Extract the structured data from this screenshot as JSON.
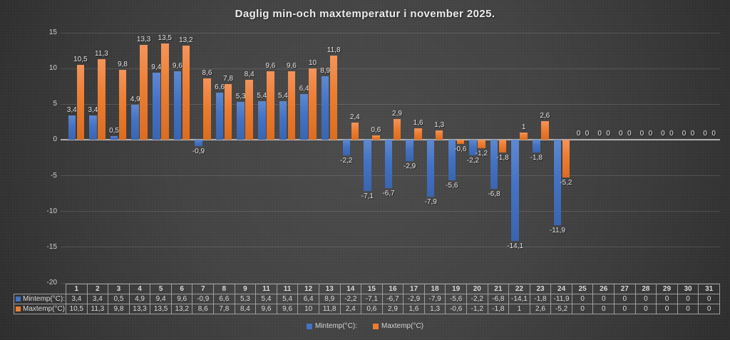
{
  "chart_data": {
    "type": "bar",
    "title": "Daglig min-och maxtemperatur i november 2025.",
    "categories": [
      "1",
      "2",
      "3",
      "4",
      "5",
      "6",
      "7",
      "8",
      "9",
      "11",
      "11",
      "12",
      "13",
      "14",
      "15",
      "16",
      "17",
      "18",
      "19",
      "20",
      "21",
      "22",
      "23",
      "24",
      "25",
      "26",
      "27",
      "28",
      "29",
      "30",
      "31"
    ],
    "series": [
      {
        "name": "Mintemp(°C):",
        "color": "#4472C4",
        "values": [
          3.4,
          3.4,
          0.5,
          4.9,
          9.4,
          9.6,
          -0.9,
          6.6,
          5.3,
          5.4,
          5.4,
          6.4,
          8.9,
          -2.2,
          -7.1,
          -6.7,
          -2.9,
          -7.9,
          -5.6,
          -2.2,
          -6.8,
          -14.1,
          -1.8,
          -11.9,
          0,
          0,
          0,
          0,
          0,
          0,
          0
        ],
        "labels": [
          "3,4",
          "3,4",
          "0,5",
          "4,9",
          "9,4",
          "9,6",
          "-0,9",
          "6,6",
          "5,3",
          "5,4",
          "5,4",
          "6,4",
          "8,9",
          "-2,2",
          "-7,1",
          "-6,7",
          "-2,9",
          "-7,9",
          "-5,6",
          "-2,2",
          "-6,8",
          "-14,1",
          "-1,8",
          "-11,9",
          "0",
          "0",
          "0",
          "0",
          "0",
          "0",
          "0"
        ]
      },
      {
        "name": "Maxtemp(°C)",
        "color": "#ED7D31",
        "values": [
          10.5,
          11.3,
          9.8,
          13.3,
          13.5,
          13.2,
          8.6,
          7.8,
          8.4,
          9.6,
          9.6,
          10,
          11.8,
          2.4,
          0.6,
          2.9,
          1.6,
          1.3,
          -0.6,
          -1.2,
          -1.8,
          1,
          2.6,
          -5.2,
          0,
          0,
          0,
          0,
          0,
          0,
          0
        ],
        "labels": [
          "10,5",
          "11,3",
          "9,8",
          "13,3",
          "13,5",
          "13,2",
          "8,6",
          "7,8",
          "8,4",
          "9,6",
          "9,6",
          "10",
          "11,8",
          "2,4",
          "0,6",
          "2,9",
          "1,6",
          "1,3",
          "-0,6",
          "-1,2",
          "-1,8",
          "1",
          "2,6",
          "-5,2",
          "0",
          "0",
          "0",
          "0",
          "0",
          "0",
          "0"
        ]
      }
    ],
    "ylim": [
      -20,
      15
    ],
    "yticks": [
      15,
      10,
      5,
      0,
      -5,
      -10,
      -15,
      -20
    ],
    "grid": true,
    "legend_position": "bottom",
    "data_table_shown": true
  }
}
